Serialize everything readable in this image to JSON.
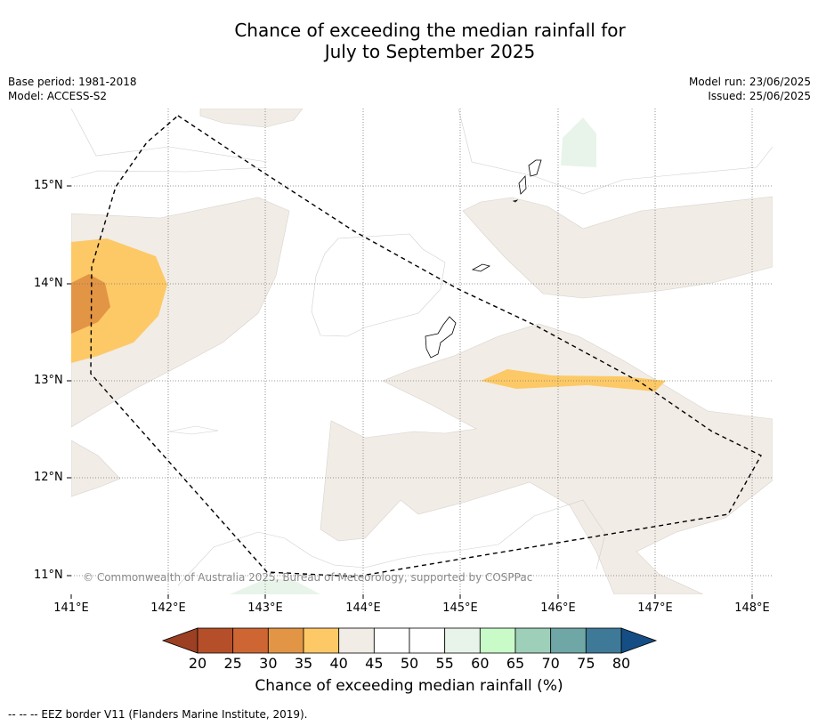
{
  "title_line1": "Chance of exceeding the median rainfall for",
  "title_line2": "July to September 2025",
  "base_period": "Base period: 1981-2018",
  "model": "Model: ACCESS-S2",
  "model_run": "Model run: 23/06/2025",
  "issued": "Issued: 25/06/2025",
  "lat_labels": [
    "15°N",
    "14°N",
    "13°N",
    "12°N",
    "11°N"
  ],
  "lon_labels": [
    "141°E",
    "142°E",
    "143°E",
    "144°E",
    "145°E",
    "146°E",
    "147°E",
    "148°E"
  ],
  "copyright": "© Commonwealth of Australia 2025, Bureau of Meteorology, supported by COSPPac",
  "colorbar": {
    "ticks": [
      "20",
      "25",
      "30",
      "35",
      "40",
      "45",
      "50",
      "55",
      "60",
      "65",
      "70",
      "75",
      "80"
    ],
    "colors": [
      "#b54f2a",
      "#cd6632",
      "#e29544",
      "#fdc966",
      "#f1ece6",
      "#ffffff",
      "#ffffff",
      "#e8f4ea",
      "#c9fbc9",
      "#9dcfb9",
      "#6fa6a6",
      "#3e7a98"
    ],
    "under_color": "#9c3f22",
    "over_color": "#154e85",
    "title": "Chance of exceeding median rainfall (%)"
  },
  "legend": "--  --  -- EEZ border V11 (Flanders Marine Institute, 2019)."
}
